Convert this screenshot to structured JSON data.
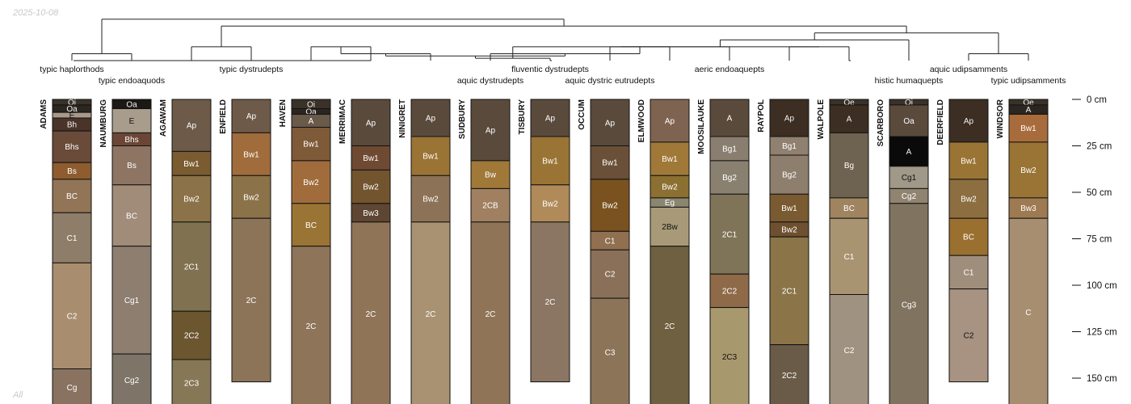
{
  "stamp_date": "2025-10-08",
  "stamp_group": "All",
  "chart_data": {
    "type": "soil-profile-sketch",
    "depth_unit": "cm",
    "depth_range": [
      0,
      165
    ],
    "depth_ticks": [
      0,
      25,
      50,
      75,
      100,
      125,
      150
    ],
    "depth_tick_labels": [
      "0 cm",
      "25 cm",
      "50 cm",
      "75 cm",
      "100 cm",
      "125 cm",
      "150 cm"
    ],
    "taxa": [
      "typic haplorthods",
      "typic endoaquods",
      "typic dystrudepts",
      "aquic dystrudepts",
      "fluventic dystrudepts",
      "aquic dystric eutrudepts",
      "aeric endoaquepts",
      "histic humaquepts",
      "aquic udipsamments",
      "typic udipsamments"
    ],
    "taxon_label_profile": [
      0,
      1,
      3,
      7,
      8,
      9,
      11,
      14,
      15,
      16
    ],
    "taxon_label_row": [
      0,
      1,
      0,
      1,
      0,
      1,
      0,
      1,
      0,
      1
    ],
    "dendrogram": [
      [
        0,
        1,
        0.85
      ],
      [
        2,
        3,
        0.7
      ],
      [
        4,
        5,
        0.7
      ],
      [
        9,
        10,
        0.7
      ],
      [
        12,
        13,
        0.7
      ],
      [
        15,
        16,
        0.85
      ],
      [
        -3,
        6,
        0.85
      ],
      [
        -4,
        7,
        0.85
      ],
      [
        -7,
        -8,
        0.9
      ],
      [
        -9,
        8,
        0.95
      ],
      [
        -10,
        11,
        0.7
      ],
      [
        -5,
        -11,
        0.7
      ],
      [
        -12,
        14,
        0.55
      ],
      [
        -13,
        -6,
        0.4
      ],
      [
        -2,
        -14,
        0.25
      ],
      [
        -1,
        -15,
        0.1
      ]
    ],
    "profiles": [
      {
        "name": "ADAMS",
        "horizons": [
          [
            "Oi",
            0,
            3,
            "#3a3228"
          ],
          [
            "Oa",
            3,
            7,
            "#2c2620"
          ],
          [
            "E",
            7,
            10,
            "#a8998a"
          ],
          [
            "Bh",
            10,
            17,
            "#4a3328"
          ],
          [
            "Bhs",
            17,
            34,
            "#6a4a38"
          ],
          [
            "Bs",
            34,
            43,
            "#8e5c2e"
          ],
          [
            "BC",
            43,
            61,
            "#917556"
          ],
          [
            "C1",
            61,
            88,
            "#8e7d68"
          ],
          [
            "C2",
            88,
            145,
            "#a88e6e"
          ],
          [
            "Cg",
            145,
            165,
            "#8a7260"
          ]
        ]
      },
      {
        "name": "NAUMBURG",
        "horizons": [
          [
            "Oa",
            0,
            5,
            "#1c1814"
          ],
          [
            "E",
            5,
            18,
            "#a89c8c"
          ],
          [
            "Bhs",
            18,
            25,
            "#6b4636"
          ],
          [
            "Bs",
            25,
            46,
            "#8e7462"
          ],
          [
            "BC",
            46,
            79,
            "#a08c78"
          ],
          [
            "Cg1",
            79,
            137,
            "#8e7e70"
          ],
          [
            "Cg2",
            137,
            165,
            "#7e7468"
          ]
        ]
      },
      {
        "name": "AGAWAM",
        "horizons": [
          [
            "Ap",
            0,
            28,
            "#6e5a48"
          ],
          [
            "Bw1",
            28,
            41,
            "#7a5c30"
          ],
          [
            "Bw2",
            41,
            66,
            "#8c7248"
          ],
          [
            "2C1",
            66,
            114,
            "#807250"
          ],
          [
            "2C2",
            114,
            140,
            "#6c5630"
          ],
          [
            "2C3",
            140,
            165,
            "#867856"
          ]
        ]
      },
      {
        "name": "ENFIELD",
        "horizons": [
          [
            "Ap",
            0,
            18,
            "#6e5a48"
          ],
          [
            "Bw1",
            18,
            41,
            "#a06c3c"
          ],
          [
            "Bw2",
            41,
            64,
            "#8c7248"
          ],
          [
            "2C",
            64,
            152,
            "#8c7458"
          ]
        ]
      },
      {
        "name": "HAVEN",
        "horizons": [
          [
            "Oi",
            0,
            5,
            "#3a3228"
          ],
          [
            "Oa",
            5,
            8,
            "#2c2620"
          ],
          [
            "A",
            8,
            15,
            "#6a5a4a"
          ],
          [
            "Bw1",
            15,
            33,
            "#7e5a38"
          ],
          [
            "Bw2",
            33,
            56,
            "#a06c3c"
          ],
          [
            "BC",
            56,
            79,
            "#9a7434"
          ],
          [
            "2C",
            79,
            165,
            "#8e7458"
          ]
        ]
      },
      {
        "name": "MERRIMAC",
        "horizons": [
          [
            "Ap",
            0,
            25,
            "#5a4a3c"
          ],
          [
            "Bw1",
            25,
            38,
            "#6e4a32"
          ],
          [
            "Bw2",
            38,
            56,
            "#72542e"
          ],
          [
            "Bw3",
            56,
            66,
            "#5e4632"
          ],
          [
            "2C",
            66,
            165,
            "#907458"
          ]
        ]
      },
      {
        "name": "NINIGRET",
        "horizons": [
          [
            "Ap",
            0,
            20,
            "#5a4a3c"
          ],
          [
            "Bw1",
            20,
            41,
            "#9a7434"
          ],
          [
            "Bw2",
            41,
            66,
            "#8c7256"
          ],
          [
            "2C",
            66,
            165,
            "#a89272"
          ]
        ]
      },
      {
        "name": "SUDBURY",
        "horizons": [
          [
            "Ap",
            0,
            33,
            "#5a4a3c"
          ],
          [
            "Bw",
            33,
            48,
            "#a07838"
          ],
          [
            "2CB",
            48,
            66,
            "#a08060"
          ],
          [
            "2C",
            66,
            165,
            "#907458"
          ]
        ]
      },
      {
        "name": "TISBURY",
        "horizons": [
          [
            "Ap",
            0,
            20,
            "#5a4a3c"
          ],
          [
            "Bw1",
            20,
            46,
            "#9a7434"
          ],
          [
            "Bw2",
            46,
            66,
            "#b08a58"
          ],
          [
            "2C",
            66,
            152,
            "#8a7662"
          ]
        ]
      },
      {
        "name": "OCCUM",
        "horizons": [
          [
            "Ap",
            0,
            25,
            "#5a4a3c"
          ],
          [
            "Bw1",
            25,
            43,
            "#6a5038"
          ],
          [
            "Bw2",
            43,
            71,
            "#7a5220"
          ],
          [
            "C1",
            71,
            81,
            "#907050"
          ],
          [
            "C2",
            81,
            107,
            "#8a7058"
          ],
          [
            "C3",
            107,
            165,
            "#8c7458"
          ]
        ]
      },
      {
        "name": "ELMWOOD",
        "horizons": [
          [
            "Ap",
            0,
            23,
            "#7e6450"
          ],
          [
            "Bw1",
            23,
            41,
            "#a07838"
          ],
          [
            "Bw2",
            41,
            53,
            "#8c7032"
          ],
          [
            "Eg",
            53,
            58,
            "#8a8670"
          ],
          [
            "2Bw",
            58,
            79,
            "#a89a78"
          ],
          [
            "2C",
            79,
            165,
            "#6e6040"
          ]
        ]
      },
      {
        "name": "MOOSILAUKE",
        "horizons": [
          [
            "A",
            0,
            20,
            "#5a4a3c"
          ],
          [
            "Bg1",
            20,
            33,
            "#8a7e70"
          ],
          [
            "Bg2",
            33,
            51,
            "#8a8070"
          ],
          [
            "2C1",
            51,
            94,
            "#807458"
          ],
          [
            "2C2",
            94,
            112,
            "#8e6a48"
          ],
          [
            "2C3",
            112,
            165,
            "#a8986e"
          ]
        ]
      },
      {
        "name": "RAYPOL",
        "horizons": [
          [
            "Ap",
            0,
            20,
            "#3c2e22"
          ],
          [
            "Bg1",
            20,
            30,
            "#908070"
          ],
          [
            "Bg2",
            30,
            51,
            "#8e7e6e"
          ],
          [
            "Bw1",
            51,
            66,
            "#7a5a30"
          ],
          [
            "Bw2",
            66,
            74,
            "#6e5030"
          ],
          [
            "2C1",
            74,
            132,
            "#8a7448"
          ],
          [
            "2C2",
            132,
            165,
            "#6a5a48"
          ]
        ]
      },
      {
        "name": "WALPOLE",
        "horizons": [
          [
            "Oe",
            0,
            3,
            "#3a3228"
          ],
          [
            "A",
            3,
            18,
            "#3c2e22"
          ],
          [
            "Bg",
            18,
            53,
            "#6e6250"
          ],
          [
            "BC",
            53,
            64,
            "#a08460"
          ],
          [
            "C1",
            64,
            105,
            "#a89470"
          ],
          [
            "C2",
            105,
            165,
            "#a09280"
          ]
        ]
      },
      {
        "name": "SCARBORO",
        "horizons": [
          [
            "Oi",
            0,
            3,
            "#3a3228"
          ],
          [
            "Oa",
            3,
            20,
            "#5a4a3c"
          ],
          [
            "A",
            20,
            36,
            "#0a0a0a"
          ],
          [
            "Cg1",
            36,
            48,
            "#a09888"
          ],
          [
            "Cg2",
            48,
            56,
            "#908470"
          ],
          [
            "Cg3",
            56,
            165,
            "#807460"
          ]
        ]
      },
      {
        "name": "DEERFIELD",
        "horizons": [
          [
            "Ap",
            0,
            23,
            "#3c2e22"
          ],
          [
            "Bw1",
            23,
            43,
            "#9a7434"
          ],
          [
            "Bw2",
            43,
            64,
            "#8c6e40"
          ],
          [
            "BC",
            64,
            84,
            "#9a7030"
          ],
          [
            "C1",
            84,
            102,
            "#a08e7c"
          ],
          [
            "C2",
            102,
            152,
            "#a89282"
          ]
        ]
      },
      {
        "name": "WINDSOR",
        "horizons": [
          [
            "Oe",
            0,
            3,
            "#3a3228"
          ],
          [
            "A",
            3,
            8,
            "#2c2620"
          ],
          [
            "Bw1",
            8,
            23,
            "#a86c3c"
          ],
          [
            "Bw2",
            23,
            53,
            "#9a7434"
          ],
          [
            "Bw3",
            53,
            64,
            "#9e7a52"
          ],
          [
            "C",
            64,
            165,
            "#a88e70"
          ]
        ]
      }
    ]
  }
}
